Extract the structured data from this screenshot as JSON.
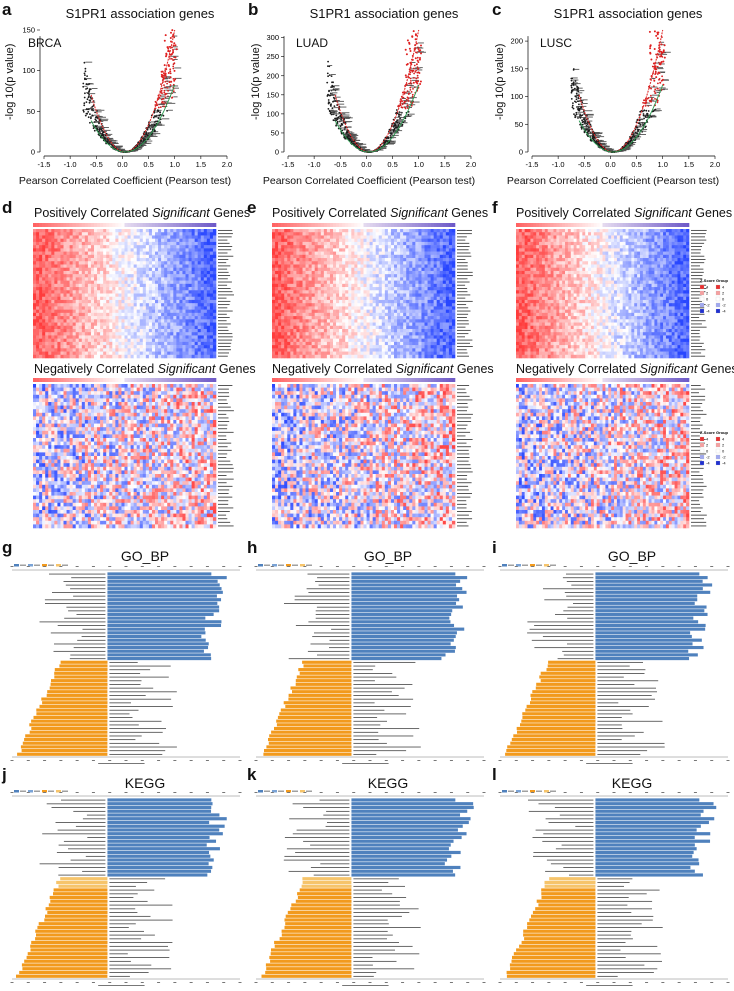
{
  "chart_data": {
    "volcano": {
      "type": "scatter",
      "title": "S1PR1 association genes",
      "xlabel": "Pearson Correlated Coefficient (Pearson test)",
      "ylabel": "-log 10(p value)",
      "xlim": [
        -1.5,
        2.0
      ],
      "xticks": [
        "-1.5",
        "-1.0",
        "-0.5",
        "0.0",
        "0.5",
        "1.0",
        "1.5",
        "2.0"
      ],
      "panels": [
        {
          "label": "a",
          "tag": "BRCA",
          "ylim": [
            0,
            150
          ],
          "yticks": [
            "0",
            "50",
            "100",
            "150"
          ]
        },
        {
          "label": "b",
          "tag": "LUAD",
          "ylim": [
            0,
            320
          ],
          "yticks": [
            "0",
            "50",
            "100",
            "150",
            "200",
            "250",
            "300"
          ]
        },
        {
          "label": "c",
          "tag": "LUSC",
          "ylim": [
            0,
            220
          ],
          "yticks": [
            "0",
            "50",
            "100",
            "150",
            "200"
          ]
        }
      ]
    },
    "heatmaps": {
      "type": "heatmap",
      "positive_title_pre": "Positively Correlated ",
      "negative_title_pre": "Negatively Correlated ",
      "title_em": "Significant",
      "title_post": " Genes",
      "panels": [
        {
          "label": "d",
          "legend": false
        },
        {
          "label": "e",
          "legend": false
        },
        {
          "label": "f",
          "legend": true
        }
      ],
      "legend": {
        "title_a": "Z-Score",
        "title_b": "Group",
        "values": [
          "4",
          "2",
          "0",
          "-2",
          "-4"
        ]
      }
    },
    "enrichment": {
      "type": "bar",
      "rows": [
        {
          "title": "GO_BP",
          "panels": [
            {
              "label": "g",
              "positive_count": 24,
              "negative_count": 26
            },
            {
              "label": "h",
              "positive_count": 24,
              "negative_count": 26
            },
            {
              "label": "i",
              "positive_count": 24,
              "negative_count": 26
            }
          ]
        },
        {
          "title": "KEGG",
          "panels": [
            {
              "label": "j",
              "positive_count": 21,
              "negative_count": 27
            },
            {
              "label": "k",
              "positive_count": 21,
              "negative_count": 27
            },
            {
              "label": "l",
              "positive_count": 21,
              "negative_count": 27
            }
          ]
        }
      ],
      "colors": {
        "positive": "#4f81bd",
        "negative": "#f29a1d",
        "negative_light": "#f6c46b"
      }
    }
  }
}
